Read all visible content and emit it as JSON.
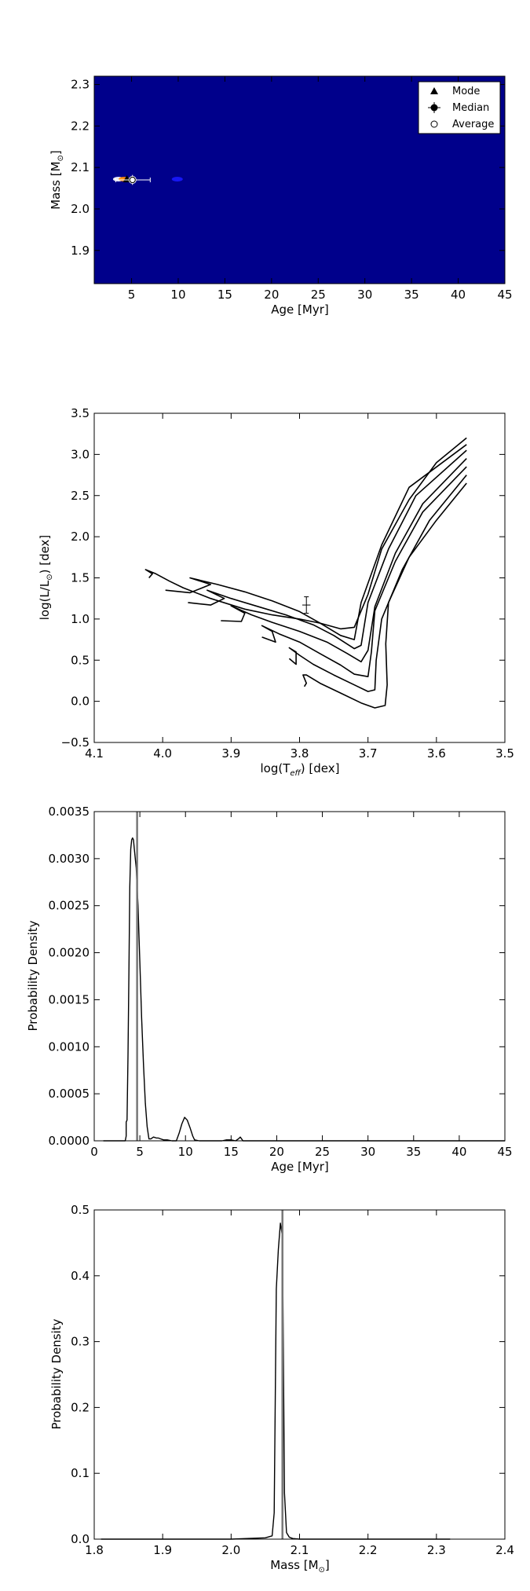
{
  "chart_data": [
    {
      "type": "heatmap",
      "xlabel": "Age [Myr]",
      "ylabel_main": "Mass [M",
      "ylabel_sub": "⊙",
      "ylabel_end": "]",
      "xlim": [
        1,
        45
      ],
      "ylim": [
        1.82,
        2.32
      ],
      "x_ticks": [
        5,
        10,
        15,
        20,
        25,
        30,
        35,
        40,
        45
      ],
      "y_ticks": [
        1.9,
        2.0,
        2.1,
        2.2,
        2.3
      ],
      "x_tick_labels": [
        "5",
        "10",
        "15",
        "20",
        "25",
        "30",
        "35",
        "40",
        "45"
      ],
      "y_tick_labels": [
        "1.9",
        "2.0",
        "2.1",
        "2.2",
        "2.3"
      ],
      "background_color": "#00008b",
      "hot_spots": [
        {
          "x": 3.6,
          "y": 2.072,
          "color": "#ffffff"
        },
        {
          "x": 4.2,
          "y": 2.072,
          "color": "#ff8800"
        },
        {
          "x": 9.9,
          "y": 2.072,
          "color": "#1a1aff"
        }
      ],
      "markers": [
        {
          "name": "Mode",
          "symbol": "triangle",
          "x": 4.5,
          "y": 2.072
        },
        {
          "name": "Median",
          "symbol": "errorbar",
          "x": 5.1,
          "y": 2.07,
          "xerr": [
            1.8,
            1.9
          ],
          "yerr": [
            0.012,
            0.012
          ]
        },
        {
          "name": "Average",
          "symbol": "open-circle",
          "x": 5.1,
          "y": 2.07
        }
      ],
      "legend": {
        "placement": "top-right",
        "entries": [
          "Mode",
          "Median",
          "Average"
        ]
      }
    },
    {
      "type": "line",
      "xlabel_main": "log(T",
      "xlabel_sub": "eff",
      "xlabel_end": ") [dex]",
      "ylabel_main": "log(L/L",
      "ylabel_sub": "⊙",
      "ylabel_end": ") [dex]",
      "xlim": [
        4.1,
        3.5
      ],
      "ylim": [
        -0.5,
        3.5
      ],
      "x_ticks": [
        4.1,
        4.0,
        3.9,
        3.8,
        3.7,
        3.6,
        3.5
      ],
      "y_ticks": [
        -0.5,
        0.0,
        0.5,
        1.0,
        1.5,
        2.0,
        2.5,
        3.0,
        3.5
      ],
      "x_tick_labels": [
        "4.1",
        "4.0",
        "3.9",
        "3.8",
        "3.7",
        "3.6",
        "3.5"
      ],
      "y_tick_labels": [
        "−0.5",
        "0.0",
        "0.5",
        "1.0",
        "1.5",
        "2.0",
        "2.5",
        "3.0",
        "3.5"
      ],
      "series": [
        {
          "x": [
            3.793,
            3.79,
            3.795,
            3.79,
            3.77,
            3.74,
            3.71,
            3.69,
            3.675,
            3.672,
            3.674,
            3.67,
            3.64,
            3.6,
            3.556
          ],
          "y": [
            0.18,
            0.22,
            0.32,
            0.32,
            0.22,
            0.1,
            -0.02,
            -0.08,
            -0.05,
            0.2,
            0.7,
            1.2,
            1.75,
            2.2,
            2.65
          ]
        },
        {
          "x": [
            3.815,
            3.805,
            3.805,
            3.815,
            3.8,
            3.78,
            3.75,
            3.72,
            3.7,
            3.69,
            3.688,
            3.68,
            3.65,
            3.61,
            3.556
          ],
          "y": [
            0.52,
            0.45,
            0.6,
            0.65,
            0.56,
            0.45,
            0.32,
            0.2,
            0.12,
            0.14,
            0.5,
            1.0,
            1.6,
            2.2,
            2.75
          ]
        },
        {
          "x": [
            3.855,
            3.835,
            3.84,
            3.855,
            3.83,
            3.8,
            3.77,
            3.74,
            3.72,
            3.7,
            3.695,
            3.69,
            3.66,
            3.62,
            3.556
          ],
          "y": [
            0.78,
            0.72,
            0.85,
            0.92,
            0.82,
            0.72,
            0.58,
            0.44,
            0.33,
            0.3,
            0.6,
            1.1,
            1.7,
            2.3,
            2.85
          ]
        },
        {
          "x": [
            3.915,
            3.885,
            3.88,
            3.9,
            3.87,
            3.84,
            3.8,
            3.76,
            3.73,
            3.71,
            3.7,
            3.69,
            3.66,
            3.62,
            3.556
          ],
          "y": [
            0.98,
            0.97,
            1.07,
            1.16,
            1.05,
            0.96,
            0.85,
            0.72,
            0.58,
            0.48,
            0.62,
            1.15,
            1.8,
            2.4,
            2.95
          ]
        },
        {
          "x": [
            3.963,
            3.93,
            3.91,
            3.935,
            3.9,
            3.86,
            3.82,
            3.78,
            3.75,
            3.72,
            3.71,
            3.7,
            3.67,
            3.63,
            3.556
          ],
          "y": [
            1.2,
            1.17,
            1.25,
            1.35,
            1.25,
            1.15,
            1.05,
            0.93,
            0.8,
            0.64,
            0.68,
            1.2,
            1.85,
            2.5,
            3.05
          ]
        },
        {
          "x": [
            3.996,
            3.96,
            3.93,
            3.96,
            3.92,
            3.88,
            3.84,
            3.8,
            3.77,
            3.74,
            3.72,
            3.71,
            3.68,
            3.64,
            3.556
          ],
          "y": [
            1.35,
            1.32,
            1.42,
            1.5,
            1.42,
            1.33,
            1.22,
            1.09,
            0.95,
            0.8,
            0.75,
            1.2,
            1.9,
            2.6,
            3.12
          ]
        },
        {
          "x": [
            4.02,
            4.015,
            4.025,
            4.01,
            3.99,
            3.97,
            3.93,
            3.88,
            3.84,
            3.8,
            3.77,
            3.74,
            3.72,
            3.7,
            3.68,
            3.64,
            3.6,
            3.556
          ],
          "y": [
            1.5,
            1.55,
            1.6,
            1.55,
            1.46,
            1.38,
            1.25,
            1.12,
            1.05,
            1.0,
            0.95,
            0.88,
            0.9,
            1.3,
            1.85,
            2.45,
            2.9,
            3.2
          ]
        }
      ],
      "point": {
        "x": 3.79,
        "y": 1.17,
        "xerr": 0.006,
        "yerr": 0.1
      }
    },
    {
      "type": "line",
      "xlabel": "Age [Myr]",
      "ylabel": "Probability Density",
      "xlim": [
        0,
        45
      ],
      "ylim": [
        0,
        0.0035
      ],
      "x_ticks": [
        0,
        5,
        10,
        15,
        20,
        25,
        30,
        35,
        40,
        45
      ],
      "y_ticks": [
        0,
        0.0005,
        0.001,
        0.0015,
        0.002,
        0.0025,
        0.003,
        0.0035
      ],
      "x_tick_labels": [
        "0",
        "5",
        "10",
        "15",
        "20",
        "25",
        "30",
        "35",
        "40",
        "45"
      ],
      "y_tick_labels": [
        "0.0000",
        "0.0005",
        "0.0010",
        "0.0015",
        "0.0020",
        "0.0025",
        "0.0030",
        "0.0035"
      ],
      "x": [
        1,
        3.4,
        3.5,
        3.5,
        3.6,
        3.7,
        3.8,
        3.9,
        4.0,
        4.1,
        4.2,
        4.3,
        4.4,
        4.5,
        4.6,
        4.7,
        4.8,
        4.9,
        5.0,
        5.2,
        5.4,
        5.6,
        5.8,
        6.0,
        6.2,
        6.5,
        6.8,
        7.0,
        7.3,
        7.6,
        8.0,
        8.5,
        9.0,
        9.3,
        9.6,
        9.9,
        10.2,
        10.5,
        10.8,
        11.0,
        11.5,
        12,
        13,
        14,
        14.5,
        15,
        15.5,
        15.8,
        16,
        16.3,
        17,
        20,
        25,
        30,
        35,
        40,
        45
      ],
      "values": [
        0,
        0,
        5e-05,
        0.0002,
        0.00022,
        0.0009,
        0.0018,
        0.0027,
        0.0031,
        0.0032,
        0.00322,
        0.0032,
        0.0031,
        0.003,
        0.0029,
        0.0027,
        0.0025,
        0.0022,
        0.0019,
        0.0013,
        0.0008,
        0.0004,
        0.00015,
        2e-05,
        2e-05,
        4e-05,
        3e-05,
        3e-05,
        2e-05,
        1e-05,
        1e-05,
        0,
        0,
        8e-05,
        0.00018,
        0.00025,
        0.00022,
        0.00014,
        5e-05,
        1e-05,
        0,
        0,
        0,
        0,
        1e-05,
        1e-05,
        0,
        2e-05,
        4e-05,
        0,
        0,
        0,
        0,
        0,
        0,
        0,
        0
      ],
      "vline": 4.7
    },
    {
      "type": "line",
      "xlabel_main": "Mass [M",
      "xlabel_sub": "⊙",
      "xlabel_end": "]",
      "ylabel": "Probability Density",
      "xlim": [
        1.8,
        2.4
      ],
      "ylim": [
        0,
        0.5
      ],
      "x_ticks": [
        1.8,
        1.9,
        2.0,
        2.1,
        2.2,
        2.3,
        2.4
      ],
      "y_ticks": [
        0,
        0.1,
        0.2,
        0.3,
        0.4,
        0.5
      ],
      "x_tick_labels": [
        "1.8",
        "1.9",
        "2.0",
        "2.1",
        "2.2",
        "2.3",
        "2.4"
      ],
      "y_tick_labels": [
        "0.0",
        "0.1",
        "0.2",
        "0.3",
        "0.4",
        "0.5"
      ],
      "x": [
        1.81,
        1.95,
        2.0,
        2.05,
        2.06,
        2.063,
        2.066,
        2.069,
        2.072,
        2.075,
        2.078,
        2.081,
        2.085,
        2.09,
        2.1,
        2.32
      ],
      "values": [
        0,
        0,
        0,
        0.002,
        0.005,
        0.04,
        0.38,
        0.44,
        0.48,
        0.46,
        0.07,
        0.01,
        0.003,
        0.001,
        0,
        0
      ],
      "vline": 2.075
    }
  ]
}
